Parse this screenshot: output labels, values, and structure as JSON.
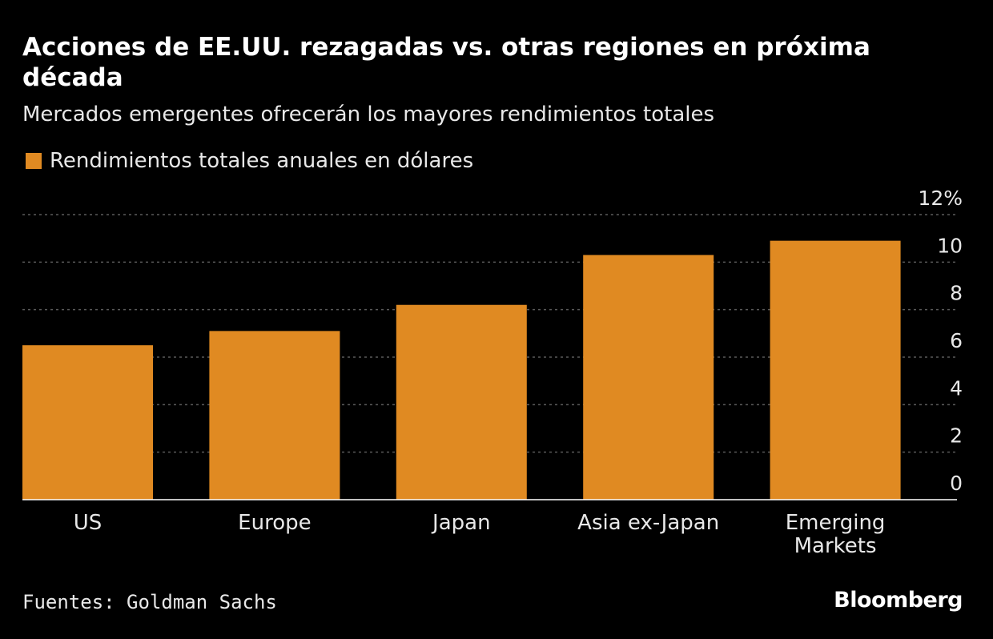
{
  "chart_data": {
    "type": "bar",
    "title": "Acciones de EE.UU. rezagadas vs. otras regiones en próxima década",
    "subtitle": "Mercados emergentes ofrecerán los mayores rendimientos totales",
    "legend": "Rendimientos totales anuales en dólares",
    "categories": [
      "US",
      "Europe",
      "Japan",
      "Asia ex-Japan",
      "Emerging Markets"
    ],
    "category_lines": [
      [
        "US"
      ],
      [
        "Europe"
      ],
      [
        "Japan"
      ],
      [
        "Asia ex-Japan"
      ],
      [
        "Emerging",
        "Markets"
      ]
    ],
    "values": [
      6.5,
      7.1,
      8.2,
      10.3,
      10.9
    ],
    "y_ticks": [
      "12%",
      "10",
      "8",
      "6",
      "4",
      "2",
      "0"
    ],
    "y_tick_values": [
      12,
      10,
      8,
      6,
      4,
      2,
      0
    ],
    "ylim": [
      0,
      12
    ],
    "xlabel": "",
    "ylabel": "",
    "grid": true,
    "y_axis_side": "right",
    "bar_color": "#e08a22",
    "source": "Fuentes: Goldman Sachs",
    "brand": "Bloomberg"
  }
}
